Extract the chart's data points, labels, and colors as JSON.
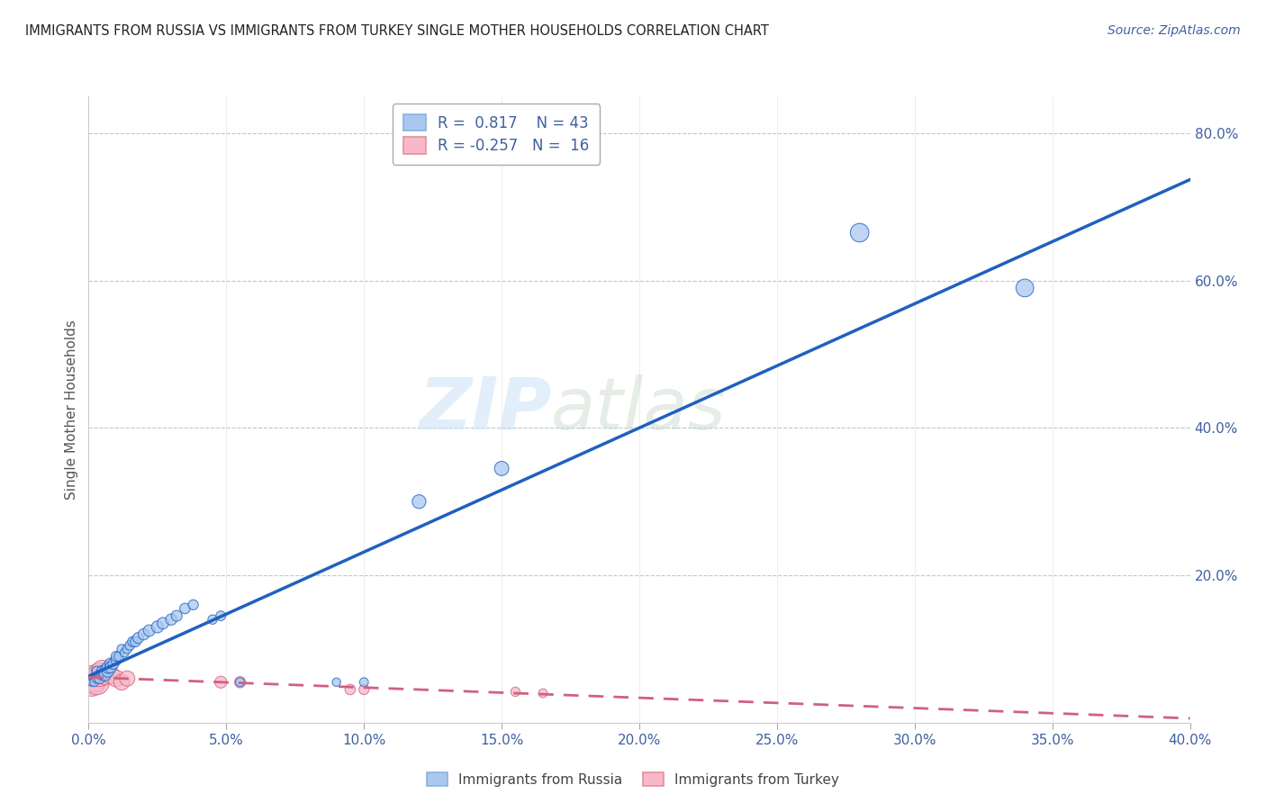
{
  "title": "IMMIGRANTS FROM RUSSIA VS IMMIGRANTS FROM TURKEY SINGLE MOTHER HOUSEHOLDS CORRELATION CHART",
  "source": "Source: ZipAtlas.com",
  "ylabel": "Single Mother Households",
  "xlim": [
    0.0,
    0.4
  ],
  "ylim": [
    0.0,
    0.85
  ],
  "xticks": [
    0.0,
    0.05,
    0.1,
    0.15,
    0.2,
    0.25,
    0.3,
    0.35,
    0.4
  ],
  "yticks": [
    0.0,
    0.2,
    0.4,
    0.6,
    0.8
  ],
  "russia_R": 0.817,
  "russia_N": 43,
  "turkey_R": -0.257,
  "turkey_N": 16,
  "russia_color": "#a8c8f0",
  "turkey_color": "#f8b8c8",
  "russia_line_color": "#2060c0",
  "turkey_line_color": "#d06080",
  "watermark_zip": "ZIP",
  "watermark_atlas": "atlas",
  "background_color": "#ffffff",
  "grid_color": "#b8c8d8",
  "russia_scatter": [
    [
      0.001,
      0.055
    ],
    [
      0.002,
      0.06
    ],
    [
      0.002,
      0.055
    ],
    [
      0.003,
      0.06
    ],
    [
      0.003,
      0.07
    ],
    [
      0.004,
      0.065
    ],
    [
      0.004,
      0.06
    ],
    [
      0.005,
      0.065
    ],
    [
      0.005,
      0.07
    ],
    [
      0.006,
      0.07
    ],
    [
      0.006,
      0.065
    ],
    [
      0.007,
      0.07
    ],
    [
      0.007,
      0.075
    ],
    [
      0.008,
      0.08
    ],
    [
      0.008,
      0.075
    ],
    [
      0.009,
      0.08
    ],
    [
      0.01,
      0.085
    ],
    [
      0.01,
      0.09
    ],
    [
      0.011,
      0.09
    ],
    [
      0.012,
      0.1
    ],
    [
      0.013,
      0.095
    ],
    [
      0.014,
      0.1
    ],
    [
      0.015,
      0.105
    ],
    [
      0.016,
      0.11
    ],
    [
      0.017,
      0.11
    ],
    [
      0.018,
      0.115
    ],
    [
      0.02,
      0.12
    ],
    [
      0.022,
      0.125
    ],
    [
      0.025,
      0.13
    ],
    [
      0.027,
      0.135
    ],
    [
      0.03,
      0.14
    ],
    [
      0.032,
      0.145
    ],
    [
      0.035,
      0.155
    ],
    [
      0.038,
      0.16
    ],
    [
      0.045,
      0.14
    ],
    [
      0.048,
      0.145
    ],
    [
      0.055,
      0.055
    ],
    [
      0.09,
      0.055
    ],
    [
      0.1,
      0.055
    ],
    [
      0.12,
      0.3
    ],
    [
      0.15,
      0.345
    ],
    [
      0.28,
      0.665
    ],
    [
      0.34,
      0.59
    ]
  ],
  "turkey_scatter": [
    [
      0.001,
      0.055
    ],
    [
      0.002,
      0.06
    ],
    [
      0.003,
      0.055
    ],
    [
      0.004,
      0.065
    ],
    [
      0.005,
      0.07
    ],
    [
      0.006,
      0.065
    ],
    [
      0.008,
      0.065
    ],
    [
      0.01,
      0.06
    ],
    [
      0.012,
      0.055
    ],
    [
      0.014,
      0.06
    ],
    [
      0.048,
      0.055
    ],
    [
      0.055,
      0.055
    ],
    [
      0.095,
      0.045
    ],
    [
      0.1,
      0.045
    ],
    [
      0.155,
      0.042
    ],
    [
      0.165,
      0.04
    ]
  ],
  "russia_sizes": [
    40,
    45,
    50,
    55,
    60,
    65,
    70,
    75,
    80,
    85,
    90,
    95,
    90,
    85,
    80,
    75,
    70,
    65,
    60,
    55,
    50,
    55,
    60,
    65,
    70,
    75,
    80,
    85,
    90,
    85,
    80,
    75,
    70,
    65,
    55,
    60,
    50,
    45,
    50,
    120,
    130,
    220,
    200
  ],
  "turkey_sizes": [
    500,
    450,
    400,
    350,
    300,
    250,
    200,
    180,
    160,
    150,
    90,
    80,
    70,
    65,
    55,
    50
  ]
}
